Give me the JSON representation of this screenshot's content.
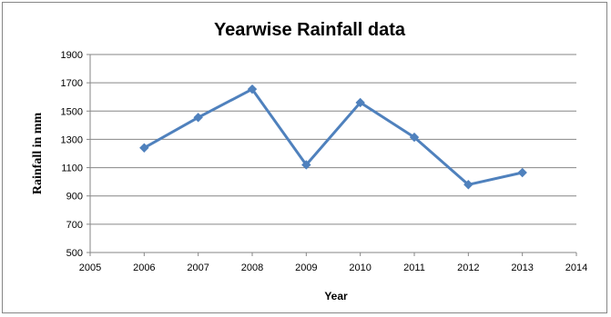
{
  "chart_data": {
    "type": "line",
    "title": "Yearwise Rainfall data",
    "xlabel": "Year",
    "ylabel": "Rainfall in mm",
    "xlim": [
      2005,
      2014
    ],
    "ylim": [
      500,
      1900
    ],
    "x_ticks": [
      2005,
      2006,
      2007,
      2008,
      2009,
      2010,
      2011,
      2012,
      2013,
      2014
    ],
    "y_ticks": [
      500,
      700,
      900,
      1100,
      1300,
      1500,
      1700,
      1900
    ],
    "grid": "horizontal",
    "legend": "none",
    "series": [
      {
        "color": "#4f81bd",
        "x": [
          2006,
          2007,
          2008,
          2009,
          2010,
          2011,
          2012,
          2013
        ],
        "y": [
          1240,
          1455,
          1655,
          1120,
          1560,
          1315,
          980,
          1065
        ]
      }
    ]
  }
}
